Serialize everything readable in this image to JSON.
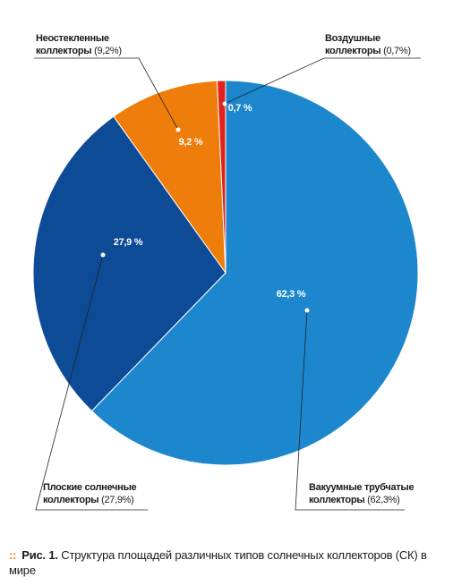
{
  "chart_data": {
    "type": "pie",
    "categories": [
      "Вакуумные трубчатые коллекторы",
      "Плоские солнечные коллекторы",
      "Неостекленные коллекторы",
      "Воздушные коллекторы"
    ],
    "values": [
      62.3,
      27.9,
      9.2,
      0.7
    ],
    "value_labels": [
      "62,3 %",
      "27,9 %",
      "9,2 %",
      "0,7 %"
    ],
    "legend_value_labels": [
      "(62,3%)",
      "(27,9%)",
      "(9,2%)",
      "(0,7%)"
    ],
    "colors": [
      "#1c87cd",
      "#0e4b97",
      "#ee7d0b",
      "#e3211b"
    ]
  },
  "caption": {
    "label": "Рис. 1.",
    "text": "Структура площадей различных типов солнечных коллекторов (СК) в мире"
  }
}
